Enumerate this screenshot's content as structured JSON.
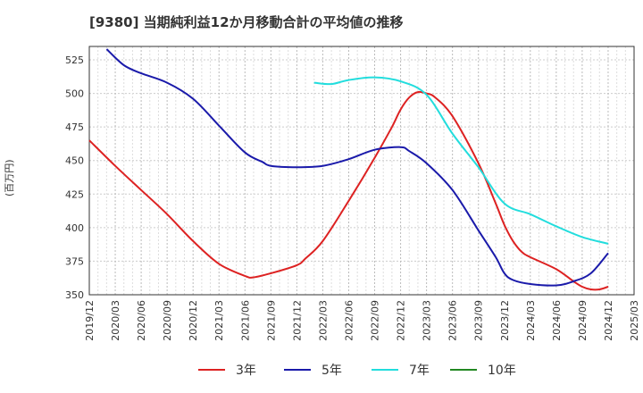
{
  "chart_data": {
    "type": "line",
    "title": "[9380]  当期純利益12か月移動合計の平均値の推移",
    "ylabel": "(百万円)",
    "xlabel": "",
    "ylim": [
      350,
      535
    ],
    "yticks": [
      350,
      375,
      400,
      425,
      450,
      475,
      500,
      525
    ],
    "xticks": [
      "2019/12",
      "2020/03",
      "2020/06",
      "2020/09",
      "2020/12",
      "2021/03",
      "2021/06",
      "2021/09",
      "2021/12",
      "2022/03",
      "2022/06",
      "2022/09",
      "2022/12",
      "2023/03",
      "2023/06",
      "2023/09",
      "2023/12",
      "2024/03",
      "2024/06",
      "2024/09",
      "2024/12",
      "2025/03"
    ],
    "grid": true,
    "legend_position": "bottom",
    "series": [
      {
        "name": "3年",
        "color": "#dd2222",
        "x": [
          "2019/12",
          "2020/03",
          "2020/06",
          "2020/09",
          "2020/12",
          "2021/03",
          "2021/06",
          "2021/07",
          "2021/09",
          "2021/12",
          "2022/01",
          "2022/03",
          "2022/06",
          "2022/09",
          "2022/11",
          "2022/12",
          "2023/01",
          "2023/02",
          "2023/03",
          "2023/04",
          "2023/06",
          "2023/09",
          "2023/11",
          "2023/12",
          "2024/01",
          "2024/02",
          "2024/03",
          "2024/06",
          "2024/08",
          "2024/09",
          "2024/10",
          "2024/11",
          "2024/12"
        ],
        "values": [
          465,
          446,
          428,
          410,
          390,
          373,
          364,
          363,
          366,
          372,
          377,
          390,
          420,
          452,
          475,
          488,
          497,
          501,
          500,
          497,
          483,
          448,
          418,
          402,
          390,
          382,
          378,
          369,
          360,
          356,
          354,
          354,
          356
        ]
      },
      {
        "name": "5年",
        "color": "#1a1aaa",
        "x": [
          "2020/02",
          "2020/04",
          "2020/06",
          "2020/09",
          "2020/12",
          "2021/03",
          "2021/06",
          "2021/08",
          "2021/09",
          "2021/12",
          "2022/03",
          "2022/06",
          "2022/09",
          "2022/12",
          "2023/01",
          "2023/03",
          "2023/06",
          "2023/09",
          "2023/11",
          "2023/12",
          "2024/01",
          "2024/03",
          "2024/06",
          "2024/08",
          "2024/10",
          "2024/12"
        ],
        "values": [
          533,
          521,
          515,
          508,
          496,
          476,
          456,
          449,
          446,
          445,
          446,
          451,
          458,
          460,
          457,
          448,
          428,
          398,
          378,
          366,
          361,
          358,
          357,
          360,
          366,
          381
        ]
      },
      {
        "name": "7年",
        "color": "#22dddd",
        "x": [
          "2022/02",
          "2022/04",
          "2022/06",
          "2022/09",
          "2022/12",
          "2023/03",
          "2023/06",
          "2023/09",
          "2023/12",
          "2024/03",
          "2024/06",
          "2024/09",
          "2024/12"
        ],
        "values": [
          508,
          507,
          510,
          512,
          509,
          499,
          470,
          445,
          418,
          410,
          401,
          393,
          388
        ]
      },
      {
        "name": "10年",
        "color": "#228822",
        "x": [],
        "values": []
      }
    ]
  }
}
